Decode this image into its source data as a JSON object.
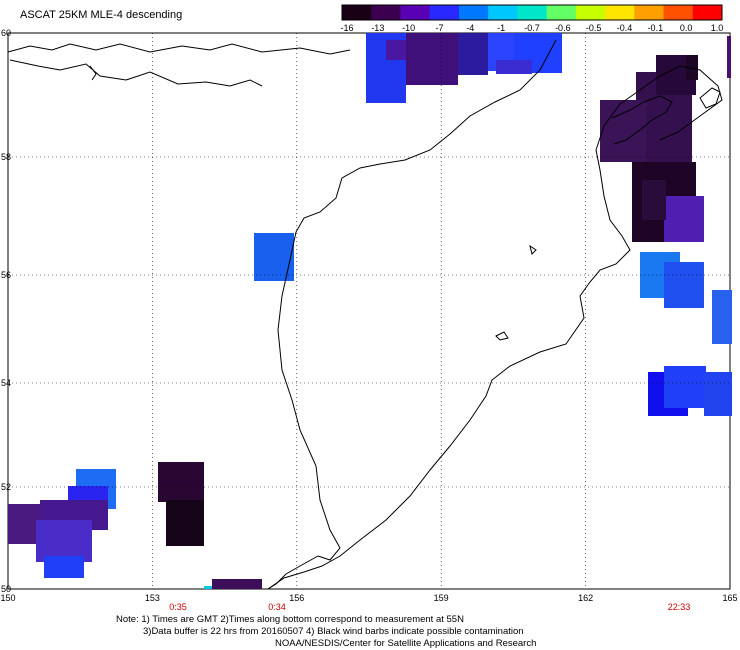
{
  "title": "ASCAT 25KM MLE-4 descending",
  "colorbar": {
    "labels": [
      "-16",
      "-13",
      "-10",
      "-7",
      "-4",
      "-1",
      "-0.7",
      "-0.6",
      "-0.5",
      "-0.4",
      "-0.1",
      "0.0",
      "1.0"
    ],
    "colors": [
      "#1a0014",
      "#3c0050",
      "#5a00b4",
      "#2828ff",
      "#0078ff",
      "#00c8ff",
      "#00e6c8",
      "#64ff64",
      "#c8ff00",
      "#ffe600",
      "#ffa000",
      "#ff5000",
      "#ff0000"
    ]
  },
  "map": {
    "lon_labels": [
      "150",
      "153",
      "156",
      "159",
      "162",
      "165"
    ],
    "lat_labels": [
      "50",
      "52",
      "54",
      "56",
      "58",
      "60"
    ],
    "time_labels": [
      "0:35",
      "0:34",
      "22:33"
    ],
    "time_color": "#cc0000",
    "land_line_color": "#000000",
    "grid_style": "dotted"
  },
  "footer": {
    "line1": "Note: 1) Times are GMT 2)Times along bottom correspond to measurement at 55N",
    "line2": "3)Data buffer is 22 hrs from 20160507 4) Black wind barbs indicate possible contamination",
    "line3": "NOAA/NESDIS/Center for Satellite Applications and Research"
  }
}
